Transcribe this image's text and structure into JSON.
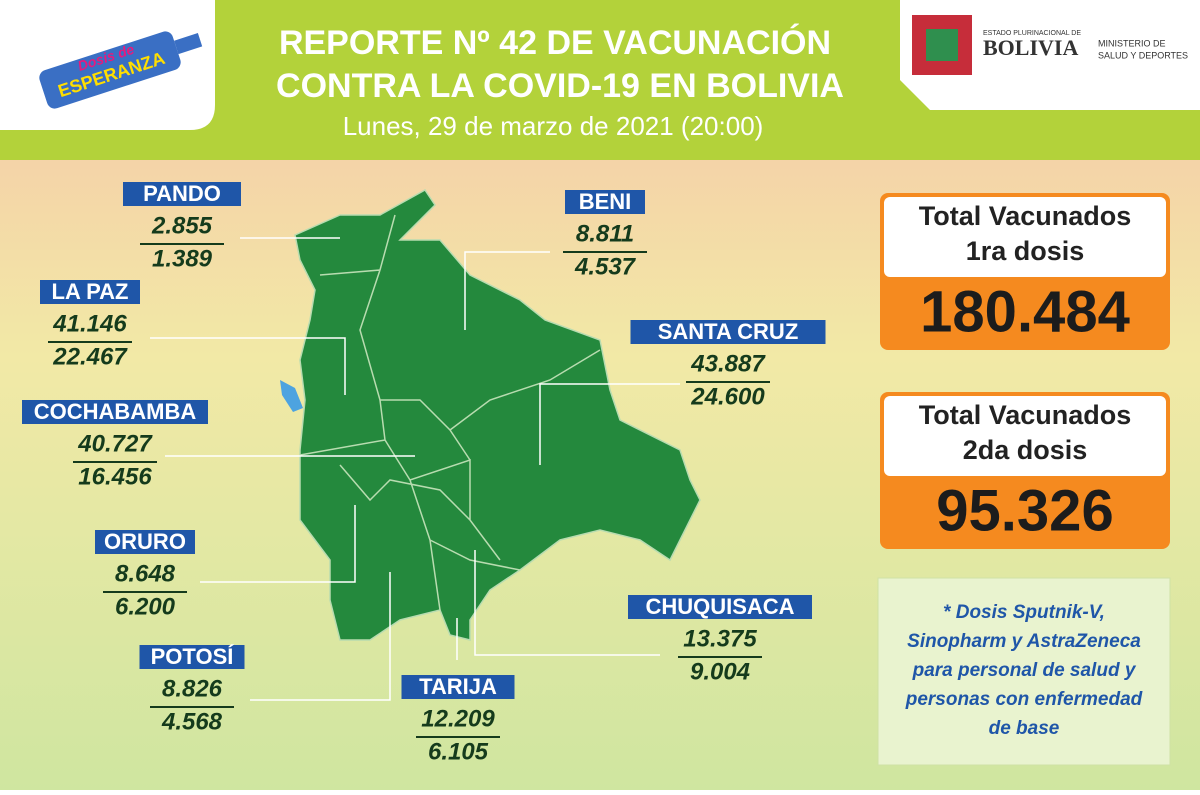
{
  "header": {
    "logo": [
      "Dosis de",
      "ESPERANZA"
    ],
    "title": [
      "REPORTE Nº 42 DE VACUNACIÓN",
      "CONTRA LA COVID-19 EN BOLIVIA"
    ],
    "date": "Lunes, 29 de marzo de 2021 (20:00)",
    "ministry": {
      "state": "ESTADO PLURINACIONAL DE",
      "country": "BOLIVIA",
      "name": [
        "MINISTERIO DE",
        "SALUD Y DEPORTES"
      ]
    }
  },
  "departments": [
    {
      "name": "PANDO",
      "first_dose": "2.855",
      "second_dose": "1.389"
    },
    {
      "name": "BENI",
      "first_dose": "8.811",
      "second_dose": "4.537"
    },
    {
      "name": "LA PAZ",
      "first_dose": "41.146",
      "second_dose": "22.467"
    },
    {
      "name": "SANTA CRUZ",
      "first_dose": "43.887",
      "second_dose": "24.600"
    },
    {
      "name": "COCHABAMBA",
      "first_dose": "40.727",
      "second_dose": "16.456"
    },
    {
      "name": "ORURO",
      "first_dose": "8.648",
      "second_dose": "6.200"
    },
    {
      "name": "CHUQUISACA",
      "first_dose": "13.375",
      "second_dose": "9.004"
    },
    {
      "name": "POTOSÍ",
      "first_dose": "8.826",
      "second_dose": "4.568"
    },
    {
      "name": "TARIJA",
      "first_dose": "12.209",
      "second_dose": "6.105"
    }
  ],
  "totals": [
    {
      "label": [
        "Total Vacunados",
        "1ra dosis"
      ],
      "value": "180.484"
    },
    {
      "label": [
        "Total Vacunados",
        "2da dosis"
      ],
      "value": "95.326"
    }
  ],
  "note": [
    "* Dosis Sputnik-V,",
    "Sinopharm y AstraZeneca",
    "para personal de salud y",
    "personas con enfermedad",
    "de base"
  ]
}
